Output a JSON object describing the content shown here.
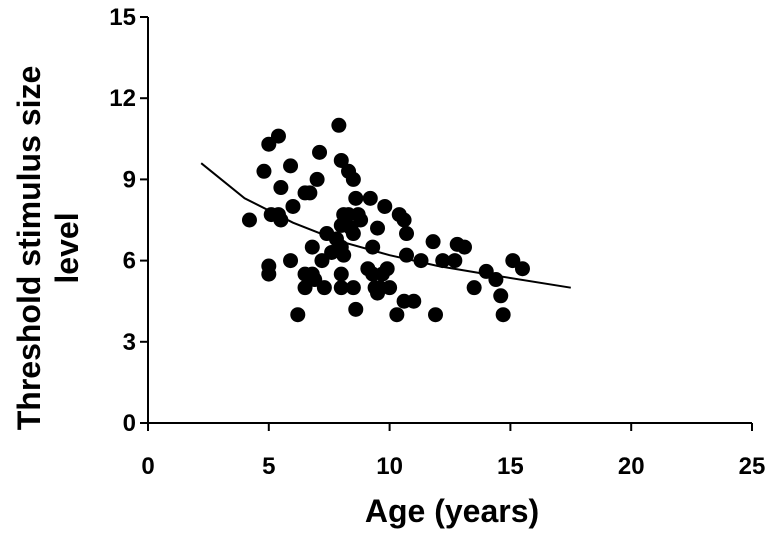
{
  "chart_data": {
    "type": "scatter",
    "title": "",
    "xlabel": "Age (years)",
    "ylabel_lines": [
      "Threshold stimulus size",
      "level"
    ],
    "xlim": [
      0,
      25
    ],
    "ylim": [
      0,
      15
    ],
    "xticks": [
      "0",
      "5",
      "10",
      "15",
      "20",
      "25"
    ],
    "yticks": [
      "0",
      "3",
      "6",
      "9",
      "12",
      "15"
    ],
    "grid": false,
    "legend": "none",
    "marker_color": "#000000",
    "points": [
      [
        4.2,
        7.5
      ],
      [
        4.8,
        9.3
      ],
      [
        5.0,
        10.3
      ],
      [
        5.4,
        10.6
      ],
      [
        5.1,
        7.7
      ],
      [
        5.4,
        7.7
      ],
      [
        5.5,
        7.5
      ],
      [
        5.0,
        5.5
      ],
      [
        5.0,
        5.8
      ],
      [
        5.9,
        9.5
      ],
      [
        5.5,
        8.7
      ],
      [
        6.0,
        8.0
      ],
      [
        5.9,
        6.0
      ],
      [
        6.2,
        4.0
      ],
      [
        6.5,
        8.5
      ],
      [
        6.7,
        8.5
      ],
      [
        6.8,
        6.5
      ],
      [
        6.5,
        5.5
      ],
      [
        6.5,
        5.0
      ],
      [
        6.8,
        5.5
      ],
      [
        7.1,
        10.0
      ],
      [
        7.0,
        9.0
      ],
      [
        6.9,
        5.3
      ],
      [
        7.2,
        6.0
      ],
      [
        7.3,
        5.0
      ],
      [
        7.4,
        7.0
      ],
      [
        7.6,
        6.3
      ],
      [
        7.9,
        11.0
      ],
      [
        7.8,
        6.8
      ],
      [
        8.0,
        9.7
      ],
      [
        8.1,
        7.7
      ],
      [
        8.0,
        7.3
      ],
      [
        8.0,
        6.5
      ],
      [
        8.1,
        6.2
      ],
      [
        8.0,
        5.5
      ],
      [
        8.0,
        5.0
      ],
      [
        8.3,
        9.3
      ],
      [
        8.5,
        9.0
      ],
      [
        8.3,
        7.7
      ],
      [
        8.4,
        7.2
      ],
      [
        8.5,
        7.0
      ],
      [
        8.6,
        8.3
      ],
      [
        8.7,
        7.7
      ],
      [
        8.8,
        7.5
      ],
      [
        8.5,
        5.0
      ],
      [
        8.6,
        4.2
      ],
      [
        9.2,
        8.3
      ],
      [
        9.1,
        5.7
      ],
      [
        9.3,
        6.5
      ],
      [
        9.5,
        7.2
      ],
      [
        9.3,
        5.5
      ],
      [
        9.4,
        5.0
      ],
      [
        9.5,
        4.8
      ],
      [
        9.7,
        5.5
      ],
      [
        9.6,
        5.0
      ],
      [
        9.8,
        8.0
      ],
      [
        9.9,
        5.7
      ],
      [
        10.0,
        5.0
      ],
      [
        10.4,
        7.7
      ],
      [
        10.6,
        7.5
      ],
      [
        10.7,
        7.0
      ],
      [
        10.3,
        4.0
      ],
      [
        10.6,
        4.5
      ],
      [
        10.7,
        6.2
      ],
      [
        11.0,
        4.5
      ],
      [
        11.3,
        6.0
      ],
      [
        11.8,
        6.7
      ],
      [
        11.9,
        4.0
      ],
      [
        12.2,
        6.0
      ],
      [
        12.7,
        6.0
      ],
      [
        12.8,
        6.6
      ],
      [
        13.1,
        6.5
      ],
      [
        13.5,
        5.0
      ],
      [
        14.0,
        5.6
      ],
      [
        14.4,
        5.3
      ],
      [
        14.6,
        4.7
      ],
      [
        14.7,
        4.0
      ],
      [
        15.1,
        6.0
      ],
      [
        15.5,
        5.7
      ]
    ],
    "trendline": {
      "type": "power",
      "x_range": [
        2.2,
        17.5
      ],
      "points": [
        [
          2.2,
          9.6
        ],
        [
          4.0,
          8.3
        ],
        [
          6.0,
          7.4
        ],
        [
          8.0,
          6.7
        ],
        [
          10.0,
          6.2
        ],
        [
          12.0,
          5.8
        ],
        [
          14.0,
          5.5
        ],
        [
          17.5,
          5.0
        ]
      ]
    }
  }
}
